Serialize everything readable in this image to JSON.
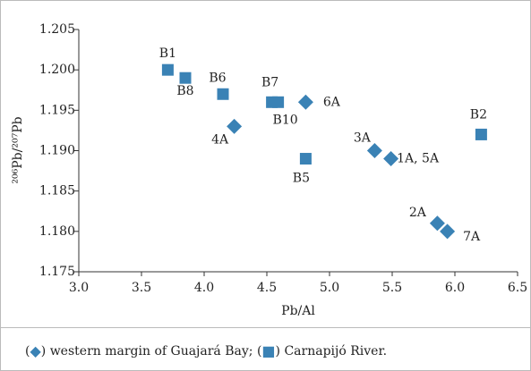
{
  "chart_data": {
    "type": "scatter",
    "xlabel": "Pb/Al",
    "ylabel": "²⁰⁶Pb/²⁰⁷Pb",
    "xlim": [
      3.0,
      6.5
    ],
    "ylim": [
      1.175,
      1.205
    ],
    "xticks": [
      {
        "value": 3,
        "label": "3.0"
      },
      3.5,
      {
        "value": 4,
        "label": "4.0"
      },
      4.5,
      {
        "value": 5,
        "label": "5.0"
      },
      5.5,
      {
        "value": 6,
        "label": "6.0"
      },
      6.5
    ],
    "yticks": [
      1.175,
      {
        "value": 1.18,
        "label": "1.180"
      },
      1.185,
      {
        "value": 1.19,
        "label": "1.190"
      },
      1.195,
      {
        "value": 1.2,
        "label": "1.200"
      },
      1.205
    ],
    "series": [
      {
        "name": "western margin of Guajará Bay",
        "marker": "diamond",
        "color": "#3a82b5",
        "x": [
          4.24,
          4.81,
          5.36,
          5.49,
          5.86,
          5.94
        ],
        "values": [
          1.193,
          1.196,
          1.19,
          1.189,
          1.181,
          1.18
        ],
        "labels": [
          "4A",
          "6A",
          "3A",
          "1A, 5A",
          "2A",
          "7A"
        ]
      },
      {
        "name": "Carnapijó River",
        "marker": "square",
        "color": "#3a82b5",
        "x": [
          3.71,
          3.85,
          4.15,
          4.54,
          4.59,
          4.81,
          6.21
        ],
        "values": [
          1.2,
          1.199,
          1.197,
          1.196,
          1.196,
          1.189,
          1.192
        ],
        "labels": [
          "B1",
          "B8",
          "B6",
          "B7",
          "B10",
          "B5",
          "B2"
        ]
      }
    ],
    "legend_punctuation": [
      "(",
      ") ",
      "; (",
      ") ",
      "."
    ]
  }
}
